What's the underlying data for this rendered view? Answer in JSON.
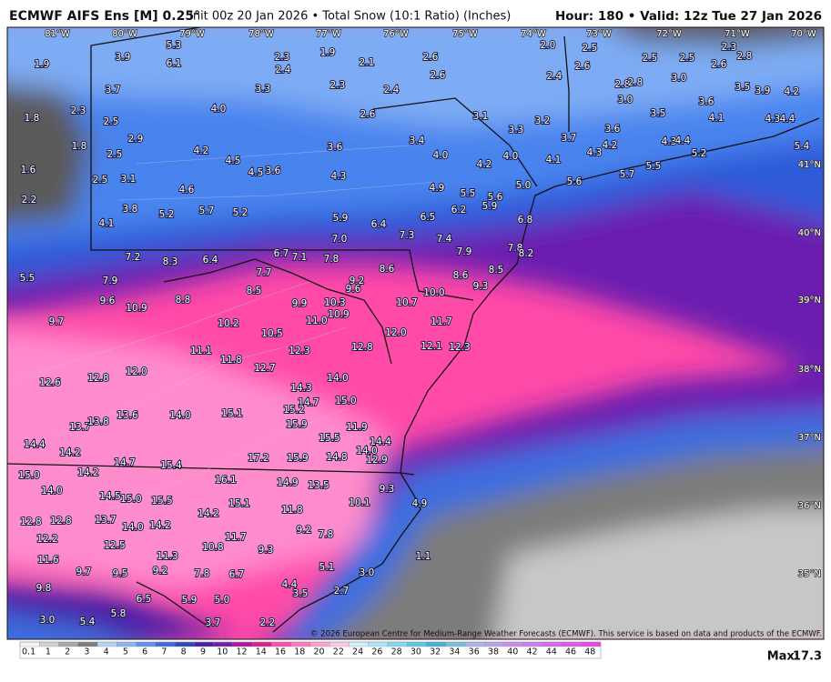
{
  "header": {
    "title": "ECMWF AIFS Ens [M] 0.25°",
    "subtitle": "Init 00z 20 Jan 2026 • Total Snow (10:1 Ratio) (Inches)",
    "valid": "Hour: 180 • Valid: 12z Tue 27 Jan 2026"
  },
  "map": {
    "longitudes": [
      "81°W",
      "80°W",
      "79°W",
      "78°W",
      "77°W",
      "76°W",
      "75°W",
      "74°W",
      "73°W",
      "72°W",
      "71°W",
      "70°W"
    ],
    "latitudes": [
      "41°N",
      "40°N",
      "39°N",
      "38°N",
      "37°N",
      "36°N",
      "35°N"
    ],
    "labels": [
      "5.3",
      "6.1",
      "3.9",
      "1.9",
      "3.7",
      "2.3",
      "2.4",
      "1.9",
      "2.1",
      "2.6",
      "2.6",
      "2.3",
      "2.4",
      "3.3",
      "2.0",
      "2.5",
      "2.6",
      "2.4",
      "2.5",
      "2.5",
      "2.6",
      "2.3",
      "2.8",
      "3.0",
      "2.8",
      "2.8",
      "3.5",
      "4.2",
      "3.0",
      "3.5",
      "3.6",
      "3.6",
      "3.9",
      "1.8",
      "2.3",
      "2.5",
      "1.8",
      "2.9",
      "4.0",
      "2.6",
      "3.1",
      "3.2",
      "3.3",
      "1.6",
      "2.5",
      "4.2",
      "4.5",
      "3.6",
      "3.4",
      "4.0",
      "3.7",
      "4.1",
      "4.3",
      "4.4",
      "4.2",
      "4.3",
      "4.3",
      "4.4",
      "5.2",
      "5.4",
      "4.1",
      "4.2",
      "4.0",
      "5.7",
      "5.5",
      "5.6",
      "5.0",
      "2.2",
      "2.5",
      "3.1",
      "4.5",
      "3.6",
      "4.3",
      "4.9",
      "4.6",
      "5.5",
      "5.6",
      "5.9",
      "6.2",
      "6.8",
      "3.8",
      "5.2",
      "5.7",
      "5.2",
      "5.9",
      "6.4",
      "6.5",
      "4.1",
      "7.0",
      "7.3",
      "7.4",
      "7.9",
      "7.8",
      "8.2",
      "5.5",
      "7.2",
      "8.3",
      "6.4",
      "6.7",
      "7.1",
      "7.8",
      "7.7",
      "8.6",
      "8.6",
      "8.5",
      "9.3",
      "7.9",
      "9.2",
      "9.6",
      "8.5",
      "8.8",
      "10.0",
      "9.6",
      "10.9",
      "9.9",
      "10.3",
      "10.7",
      "10.9",
      "11.0",
      "9.7",
      "10.2",
      "10.5",
      "12.0",
      "11.7",
      "11.1",
      "12.3",
      "12.8",
      "12.1",
      "12.3",
      "11.8",
      "12.7",
      "12.0",
      "12.8",
      "12.6",
      "14.0",
      "14.3",
      "14.7",
      "15.0",
      "15.2",
      "14.0",
      "15.1",
      "13.6",
      "13.7",
      "13.8",
      "15.9",
      "11.9",
      "15.5",
      "14.4",
      "14.2",
      "14.7",
      "15.4",
      "17.2",
      "15.9",
      "14.8",
      "14.0",
      "14.4",
      "12.9",
      "15.0",
      "14.2",
      "16.1",
      "14.9",
      "13.5",
      "9.3",
      "14.0",
      "14.5",
      "15.0",
      "15.5",
      "15.1",
      "10.1",
      "4.9",
      "11.8",
      "14.2",
      "12.8",
      "12.8",
      "13.7",
      "14.0",
      "14.2",
      "9.2",
      "7.8",
      "11.7",
      "12.2",
      "12.5",
      "10.8",
      "9.3",
      "11.3",
      "11.6",
      "5.1",
      "1.1",
      "9.7",
      "9.5",
      "9.2",
      "7.8",
      "6.7",
      "3.0",
      "9.8",
      "4.4",
      "3.5",
      "2.7",
      "6.5",
      "5.9",
      "5.0",
      "5.8",
      "5.4",
      "3.7",
      "2.2",
      "3.0"
    ]
  },
  "colorbar": {
    "labels": [
      "0.1",
      "1",
      "2",
      "3",
      "4",
      "5",
      "6",
      "7",
      "8",
      "9",
      "10",
      "12",
      "14",
      "16",
      "18",
      "20",
      "22",
      "24",
      "26",
      "28",
      "30",
      "32",
      "34",
      "36",
      "38",
      "40",
      "42",
      "44",
      "46",
      "48"
    ],
    "colors": [
      "#f4f4f4",
      "#d2d2d2",
      "#a8a8a8",
      "#7c7c7c",
      "#b4d2fa",
      "#8cb4f5",
      "#5f94ee",
      "#3a6ee0",
      "#2a48c0",
      "#4a1ea6",
      "#7a1aa8",
      "#b4169e",
      "#e01c8c",
      "#ff4aa8",
      "#ff78c4",
      "#ffa0d6",
      "#ffc8e8",
      "#d2f0ff",
      "#aae6ff",
      "#82d8f4",
      "#5ac6e6",
      "#3cb4d8",
      "#78bede",
      "#a8b4f0",
      "#bca0f0",
      "#c88cee",
      "#d27aee",
      "#dc68ee",
      "#e256ec",
      "#e846ea"
    ]
  },
  "footer": {
    "copyright": "© 2026 European Centre for Medium-Range Weather Forecasts (ECMWF). This service is based on data and products of the ECMWF.",
    "max_label": "Max:",
    "max_value": "17.3"
  }
}
